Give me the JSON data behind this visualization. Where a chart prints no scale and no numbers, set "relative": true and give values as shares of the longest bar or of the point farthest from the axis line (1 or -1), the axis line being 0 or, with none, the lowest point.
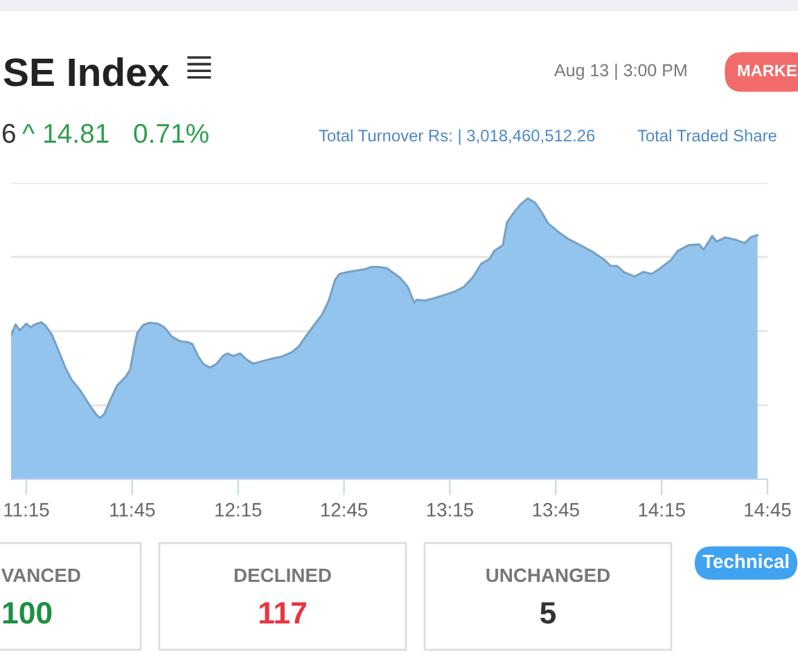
{
  "chart_data": [
    {
      "type": "area",
      "title": "SE Index",
      "annotations": [
        "Aug 13 | 3:00 PM",
        "MARKE",
        "6",
        "^ 14.81",
        "0.71%",
        "Total Turnover Rs: | 3,018,460,512.26",
        "Total Traded Share"
      ],
      "relative": true,
      "color": "#92c4ee",
      "grid": "y",
      "xlim": [
        11.178,
        14.75
      ],
      "xticks": [
        {
          "value": 11.25,
          "label": "11:15"
        },
        {
          "value": 11.75,
          "label": "11:45"
        },
        {
          "value": 12.25,
          "label": "12:15"
        },
        {
          "value": 12.75,
          "label": "12:45"
        },
        {
          "value": 13.25,
          "label": "13:15"
        },
        {
          "value": 13.75,
          "label": "13:45"
        },
        {
          "value": 14.25,
          "label": "14:15"
        },
        {
          "value": 14.75,
          "label": "14:45"
        }
      ],
      "x": [
        11.178,
        11.199,
        11.219,
        11.25,
        11.27,
        11.29,
        11.321,
        11.342,
        11.372,
        11.403,
        11.434,
        11.464,
        11.505,
        11.546,
        11.576,
        11.596,
        11.617,
        11.648,
        11.678,
        11.719,
        11.74,
        11.76,
        11.774,
        11.801,
        11.831,
        11.872,
        11.902,
        11.937,
        11.974,
        12.015,
        12.035,
        12.06,
        12.086,
        12.117,
        12.147,
        12.178,
        12.199,
        12.229,
        12.26,
        12.29,
        12.321,
        12.361,
        12.402,
        12.453,
        12.505,
        12.535,
        12.566,
        12.606,
        12.647,
        12.678,
        12.708,
        12.729,
        12.77,
        12.81,
        12.851,
        12.882,
        12.912,
        12.953,
        12.984,
        13.014,
        13.051,
        13.082,
        13.092,
        13.132,
        13.173,
        13.224,
        13.276,
        13.316,
        13.357,
        13.398,
        13.438,
        13.459,
        13.5,
        13.52,
        13.551,
        13.582,
        13.618,
        13.653,
        13.683,
        13.714,
        13.765,
        13.806,
        13.867,
        13.928,
        13.98,
        14.01,
        14.041,
        14.071,
        14.122,
        14.163,
        14.203,
        14.244,
        14.295,
        14.326,
        14.376,
        14.427,
        14.448,
        14.489,
        14.509,
        14.55,
        14.601,
        14.642,
        14.672,
        14.703
      ],
      "values": [
        0.513,
        0.551,
        0.53,
        0.554,
        0.541,
        0.551,
        0.559,
        0.546,
        0.513,
        0.456,
        0.398,
        0.354,
        0.316,
        0.267,
        0.235,
        0.218,
        0.231,
        0.285,
        0.333,
        0.365,
        0.39,
        0.472,
        0.521,
        0.549,
        0.557,
        0.554,
        0.541,
        0.508,
        0.492,
        0.488,
        0.481,
        0.439,
        0.41,
        0.398,
        0.41,
        0.439,
        0.448,
        0.439,
        0.448,
        0.426,
        0.412,
        0.42,
        0.428,
        0.436,
        0.453,
        0.472,
        0.505,
        0.546,
        0.587,
        0.636,
        0.71,
        0.731,
        0.738,
        0.743,
        0.748,
        0.756,
        0.756,
        0.751,
        0.734,
        0.718,
        0.685,
        0.628,
        0.639,
        0.636,
        0.644,
        0.656,
        0.669,
        0.685,
        0.718,
        0.767,
        0.784,
        0.813,
        0.833,
        0.915,
        0.948,
        0.977,
        1,
        0.984,
        0.951,
        0.911,
        0.879,
        0.857,
        0.833,
        0.808,
        0.781,
        0.759,
        0.759,
        0.738,
        0.722,
        0.738,
        0.731,
        0.751,
        0.781,
        0.813,
        0.833,
        0.836,
        0.817,
        0.866,
        0.846,
        0.861,
        0.852,
        0.841,
        0.862,
        0.869
      ]
    },
    {
      "type": "other",
      "categories": [
        "VANCED",
        "DECLINED",
        "UNCHANGED"
      ],
      "values": [
        100,
        117,
        5
      ],
      "data_labels": true,
      "annotations": [
        "Technical"
      ]
    }
  ]
}
